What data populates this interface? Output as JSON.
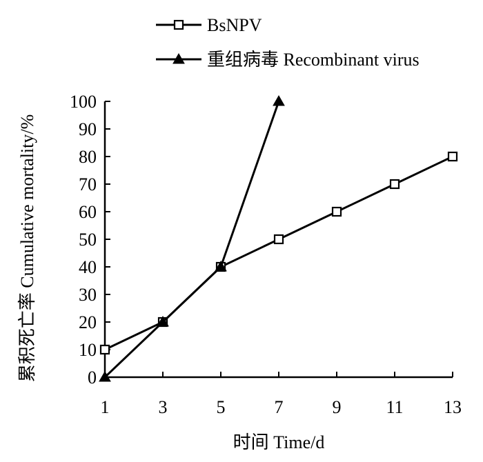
{
  "chart_data": {
    "type": "line",
    "title": "",
    "xlabel": "时间 Time/d",
    "ylabel": "累积死亡率 Cumulative mortality/%",
    "x": [
      1,
      3,
      5,
      7,
      9,
      11,
      13
    ],
    "xlim": [
      1,
      13
    ],
    "ylim": [
      0,
      100
    ],
    "x_ticks": [
      "1",
      "3",
      "5",
      "7",
      "9",
      "11",
      "13"
    ],
    "y_ticks": [
      "0",
      "10",
      "20",
      "30",
      "40",
      "50",
      "60",
      "70",
      "80",
      "90",
      "100"
    ],
    "grid": false,
    "legend_position": "top",
    "series": [
      {
        "name": "BsNPV",
        "marker": "square-open",
        "color": "#000000",
        "x": [
          1,
          3,
          5,
          7,
          9,
          11,
          13
        ],
        "values": [
          10,
          20,
          40,
          50,
          60,
          70,
          80
        ]
      },
      {
        "name": "重组病毒 Recombinant virus",
        "marker": "triangle-filled",
        "color": "#000000",
        "x": [
          1,
          3,
          5,
          7
        ],
        "values": [
          0,
          20,
          40,
          100
        ]
      }
    ]
  }
}
